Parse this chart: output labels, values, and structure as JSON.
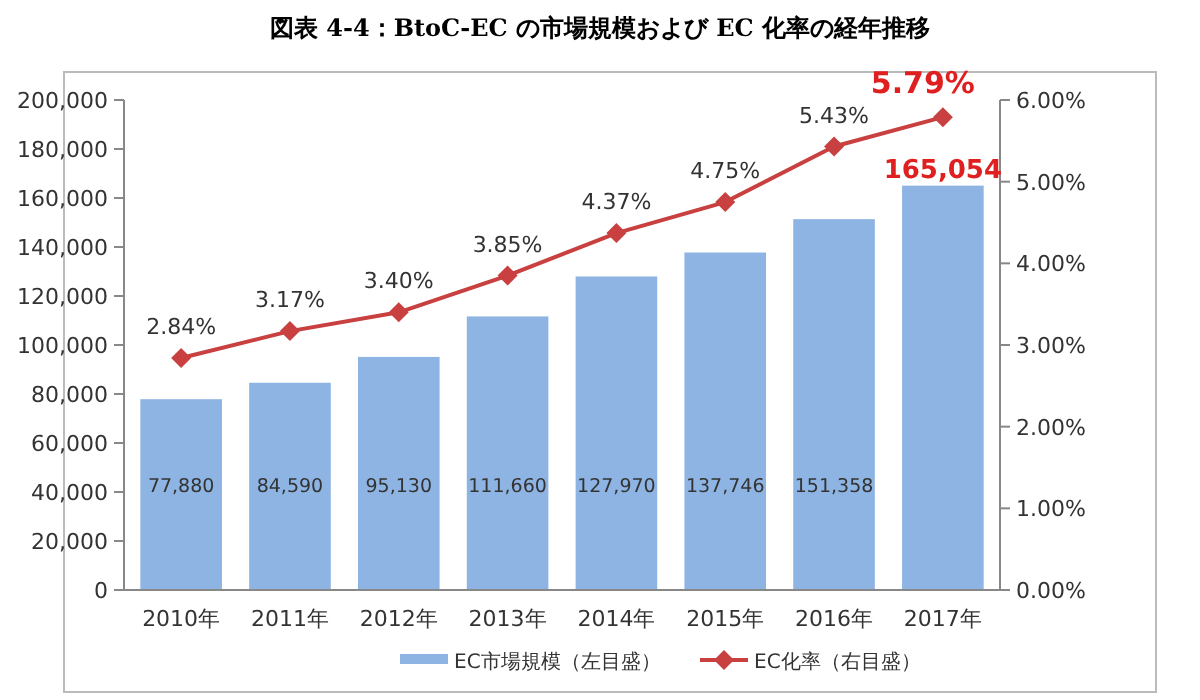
{
  "chart_data": {
    "type": "bar",
    "title": "図表 4-4：BtoC-EC の市場規模および EC 化率の経年推移",
    "categories": [
      "2010年",
      "2011年",
      "2012年",
      "2013年",
      "2014年",
      "2015年",
      "2016年",
      "2017年"
    ],
    "series": [
      {
        "name": "EC市場規模（左目盛）",
        "color": "#8eb4e3",
        "values": [
          77880,
          84590,
          95130,
          111660,
          127970,
          137746,
          151358,
          165054
        ],
        "value_labels": [
          "77,880",
          "84,590",
          "95,130",
          "111,660",
          "127,970",
          "137,746",
          "151,358",
          "165,054"
        ]
      },
      {
        "name": "EC化率（右目盛）",
        "type": "line",
        "axis": "y2",
        "color": "#c8403f",
        "marker": "diamond",
        "values": [
          2.84,
          3.17,
          3.4,
          3.85,
          4.37,
          4.75,
          5.43,
          5.79
        ],
        "value_labels": [
          "2.84%",
          "3.17%",
          "3.40%",
          "3.85%",
          "4.37%",
          "4.75%",
          "5.43%",
          "5.79%"
        ]
      }
    ],
    "ylim": [
      0,
      200000
    ],
    "yticks": [
      {
        "value": 0,
        "label": "0"
      },
      {
        "value": 20000,
        "label": "20,000"
      },
      {
        "value": 40000,
        "label": "40,000"
      },
      {
        "value": 60000,
        "label": "60,000"
      },
      {
        "value": 80000,
        "label": "80,000"
      },
      {
        "value": 100000,
        "label": "100,000"
      },
      {
        "value": 120000,
        "label": "120,000"
      },
      {
        "value": 140000,
        "label": "140,000"
      },
      {
        "value": 160000,
        "label": "160,000"
      },
      {
        "value": 180000,
        "label": "180,000"
      },
      {
        "value": 200000,
        "label": "200,000"
      }
    ],
    "y2lim": [
      0,
      6
    ],
    "y2ticks": [
      {
        "value": 0,
        "label": "0.00%"
      },
      {
        "value": 1,
        "label": "1.00%"
      },
      {
        "value": 2,
        "label": "2.00%"
      },
      {
        "value": 3,
        "label": "3.00%"
      },
      {
        "value": 4,
        "label": "4.00%"
      },
      {
        "value": 5,
        "label": "5.00%"
      },
      {
        "value": 6,
        "label": "6.00%"
      }
    ],
    "grid": false,
    "legend": "bottom"
  }
}
